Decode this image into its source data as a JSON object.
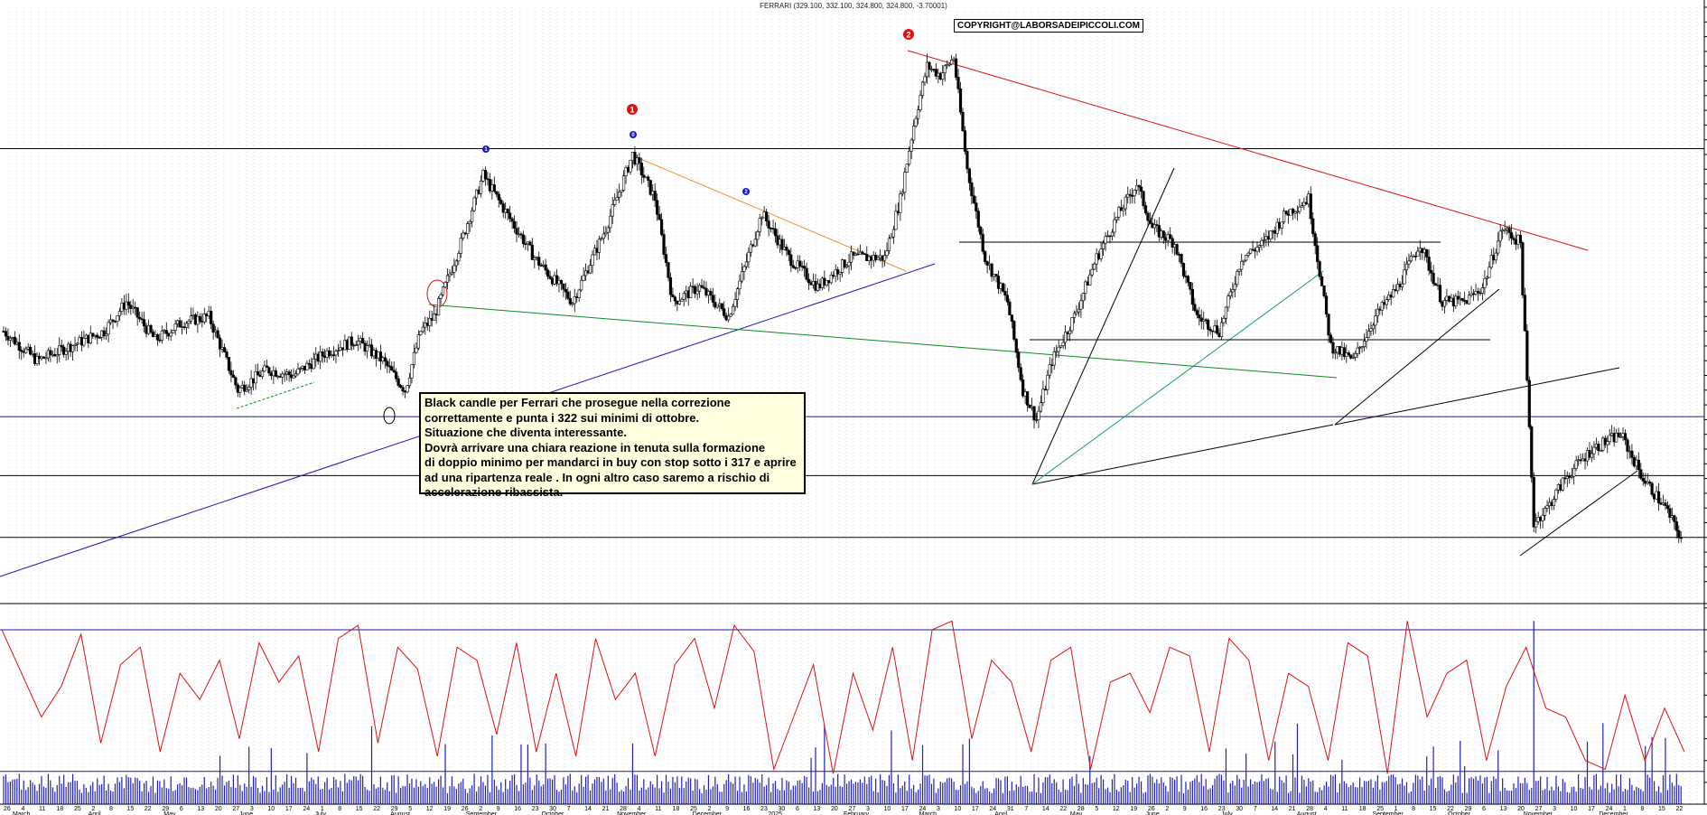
{
  "header": {
    "title": "FERRARI (329.100, 332.100, 324.800, 324.800, -3.70001)",
    "copyright": "COPYRIGHT@LABORSADEIPICCOLI.COM"
  },
  "annotation": {
    "lines": [
      "Black candle per Ferrari che prosegue nella correzione",
      "correttamente e punta i 322 sui minimi di ottobre.",
      "Situazione che diventa interessante.",
      "Dovrà arrivare una chiara reazione in tenuta sulla formazione",
      "di doppio minimo per mandarci in buy con stop sotto i 317 e aprire",
      "ad una ripartenza reale . In ogni altro caso saremo a rischio di",
      "accelerazione ribassista."
    ]
  },
  "chart_data": [
    {
      "type": "candlestick",
      "title": "FERRARI (329.100, 332.100, 324.800, 324.800, -3.70001)",
      "ylim": [
        305,
        505
      ],
      "y_ticks": [
        310,
        315,
        320,
        325,
        330,
        335,
        340,
        345,
        350,
        355,
        360,
        365,
        370,
        375,
        380,
        385,
        390,
        395,
        400,
        405,
        410,
        415,
        420,
        425,
        430,
        435,
        440,
        445,
        450,
        455,
        460,
        465,
        470,
        475,
        480,
        485,
        490,
        495,
        500,
        505
      ],
      "x_month_labels": [
        "March",
        "April",
        "May",
        "June",
        "July",
        "August",
        "September",
        "October",
        "November",
        "December",
        "2025",
        "February",
        "March",
        "April",
        "May",
        "June",
        "July",
        "August",
        "September",
        "October",
        "November",
        "December"
      ],
      "x_day_labels": [
        "26",
        "4",
        "11",
        "18",
        "25",
        "2",
        "8",
        "15",
        "22",
        "29",
        "6",
        "13",
        "20",
        "27",
        "3",
        "10",
        "17",
        "24",
        "1",
        "8",
        "15",
        "22",
        "29",
        "5",
        "12",
        "19",
        "26",
        "2",
        "9",
        "16",
        "23",
        "30",
        "7",
        "14",
        "21",
        "28",
        "4",
        "11",
        "18",
        "25",
        "2",
        "9",
        "16",
        "23",
        "30",
        "6",
        "13",
        "20",
        "27",
        "3",
        "10",
        "17",
        "24",
        "3",
        "10",
        "17",
        "24",
        "31",
        "7",
        "14",
        "22",
        "28",
        "5",
        "12",
        "19",
        "26",
        "2",
        "9",
        "16",
        "23",
        "30",
        "7",
        "14",
        "21",
        "28",
        "4",
        "11",
        "18",
        "25",
        "1",
        "8",
        "15",
        "22",
        "29",
        "6",
        "13",
        "20",
        "27",
        "3",
        "10",
        "17",
        "24",
        "1",
        "8",
        "15",
        "22"
      ],
      "approx_close_path": [
        [
          0,
          395
        ],
        [
          15,
          385
        ],
        [
          30,
          390
        ],
        [
          45,
          395
        ],
        [
          55,
          405
        ],
        [
          68,
          392
        ],
        [
          80,
          398
        ],
        [
          92,
          400
        ],
        [
          105,
          375
        ],
        [
          118,
          382
        ],
        [
          130,
          380
        ],
        [
          145,
          388
        ],
        [
          158,
          392
        ],
        [
          170,
          385
        ],
        [
          180,
          375
        ],
        [
          187,
          395
        ],
        [
          193,
          400
        ],
        [
          205,
          425
        ],
        [
          215,
          448
        ],
        [
          223,
          438
        ],
        [
          238,
          420
        ],
        [
          255,
          405
        ],
        [
          270,
          430
        ],
        [
          282,
          455
        ],
        [
          292,
          440
        ],
        [
          300,
          405
        ],
        [
          312,
          410
        ],
        [
          325,
          400
        ],
        [
          340,
          435
        ],
        [
          352,
          420
        ],
        [
          365,
          410
        ],
        [
          380,
          420
        ],
        [
          395,
          420
        ],
        [
          402,
          440
        ],
        [
          408,
          465
        ],
        [
          414,
          485
        ],
        [
          420,
          482
        ],
        [
          426,
          488
        ],
        [
          432,
          450
        ],
        [
          440,
          420
        ],
        [
          450,
          405
        ],
        [
          457,
          375
        ],
        [
          463,
          365
        ],
        [
          470,
          385
        ],
        [
          480,
          400
        ],
        [
          490,
          420
        ],
        [
          500,
          435
        ],
        [
          508,
          445
        ],
        [
          515,
          430
        ],
        [
          525,
          425
        ],
        [
          535,
          400
        ],
        [
          545,
          395
        ],
        [
          555,
          420
        ],
        [
          565,
          425
        ],
        [
          575,
          435
        ],
        [
          585,
          440
        ],
        [
          595,
          390
        ],
        [
          605,
          385
        ],
        [
          615,
          400
        ],
        [
          625,
          410
        ],
        [
          635,
          425
        ],
        [
          645,
          405
        ],
        [
          655,
          405
        ],
        [
          663,
          410
        ],
        [
          672,
          430
        ],
        [
          680,
          425
        ],
        [
          686,
          330
        ],
        [
          692,
          335
        ],
        [
          700,
          345
        ],
        [
          712,
          355
        ],
        [
          725,
          360
        ],
        [
          735,
          345
        ],
        [
          745,
          335
        ],
        [
          752,
          324.8
        ]
      ],
      "highlighted_levels": [
        457,
        366,
        346,
        325
      ],
      "wave_labels": [
        "1",
        "0",
        "2",
        "1",
        "2"
      ]
    },
    {
      "type": "line",
      "series": [
        {
          "name": "",
          "values": [
            40000,
            30000,
            20000,
            27000,
            39000,
            14000,
            32000,
            36000,
            12000,
            30000,
            24000,
            33000,
            15000,
            37000,
            28000,
            34000,
            12000,
            38000,
            41000,
            14000,
            36000,
            31000,
            11000,
            36000,
            33000,
            16000,
            37000,
            12000,
            30000,
            11000,
            38000,
            24000,
            30000,
            11000,
            32000,
            38000,
            22000,
            41000,
            35000,
            8000,
            20000,
            32000,
            7000,
            30000,
            17000,
            36000,
            10000,
            40000,
            42000,
            15000,
            33000,
            28000,
            12000,
            33000,
            36000,
            8000,
            28000,
            30000,
            21000,
            36000,
            34000,
            12000,
            38000,
            33000,
            10000,
            30000,
            27000,
            10000,
            37000,
            34000,
            7000,
            42000,
            20000,
            30000,
            33000,
            10000,
            27000,
            36000,
            22000,
            20000,
            10000,
            8000,
            25000,
            10000,
            22000,
            12000
          ]
        }
      ],
      "ylim": [
        0,
        46000
      ],
      "y_ticks": [
        5000,
        10000,
        15000,
        20000,
        25000,
        30000,
        35000,
        40000,
        45000
      ],
      "highlighted_levels": [
        40000,
        7500
      ]
    }
  ]
}
